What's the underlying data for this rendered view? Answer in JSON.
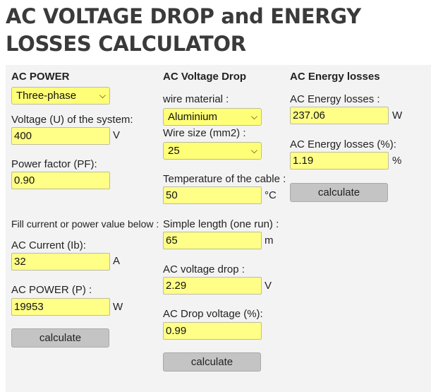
{
  "title": "AC VOLTAGE DROP and ENERGY LOSSES CALCULATOR",
  "ac_power": {
    "heading": "AC POWER",
    "phase_select": "Three-phase",
    "voltage_label": "Voltage (U) of the system:",
    "voltage_value": "400",
    "voltage_unit": "V",
    "pf_label": "Power factor (PF):",
    "pf_value": "0.90",
    "fill_note": "Fill current or power value below :",
    "current_label": "AC Current (Ib):",
    "current_value": "32",
    "current_unit": "A",
    "power_label": "AC POWER (P) :",
    "power_value": "19953",
    "power_unit": "W",
    "calc_label": "calculate"
  },
  "voltage_drop": {
    "heading": "AC Voltage Drop",
    "material_label": "wire material :",
    "material_select": "Aluminium",
    "size_label": "Wire size (mm2) :",
    "size_select": "25",
    "temp_label": "Temperature of the cable :",
    "temp_value": "50",
    "temp_unit": "°C",
    "length_label": "Simple length (one run) :",
    "length_value": "65",
    "length_unit": "m",
    "drop_label": "AC voltage drop :",
    "drop_value": "2.29",
    "drop_unit": "V",
    "drop_pct_label": "AC Drop voltage (%):",
    "drop_pct_value": "0.99",
    "calc_label": "calculate"
  },
  "energy": {
    "heading": "AC Energy losses",
    "loss_label": "AC Energy losses :",
    "loss_value": "237.06",
    "loss_unit": "W",
    "loss_pct_label": "AC Energy losses (%):",
    "loss_pct_value": "1.19",
    "loss_pct_unit": "%",
    "calc_label": "calculate"
  }
}
